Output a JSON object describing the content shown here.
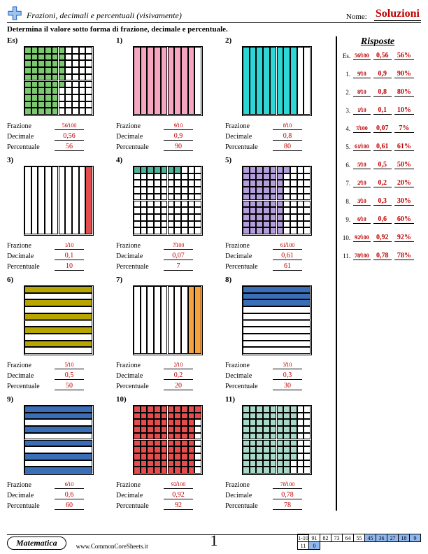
{
  "header": {
    "title": "Frazioni, decimali e percentuali (visivamente)",
    "name_label": "Nome:",
    "solutions": "Soluzioni",
    "answers_title": "Risposte"
  },
  "instructions": "Determina il valore sotto forma di frazione, decimale e percentuale.",
  "labels": {
    "fraction": "Frazione",
    "decimal": "Decimale",
    "percent": "Percentuale",
    "es": "Es)",
    "es_short": "Es."
  },
  "colors": {
    "green": "#7bc96f",
    "pink": "#f7a6c1",
    "cyan": "#2fd6d6",
    "red": "#e44d4d",
    "teal": "#4fb39a",
    "purple": "#b39ddb",
    "olive": "#b8a600",
    "orange": "#f7a13d",
    "blue": "#3a6fb7",
    "seafoam": "#a8d8c8",
    "answer_red": "#c00000",
    "score_blue": "#8fb8f0",
    "score_white": "#ffffff",
    "border": "#000000"
  },
  "problems": [
    {
      "id": "Es",
      "type": "hundred",
      "filled": 56,
      "color": "green",
      "orient": "v",
      "num": 56,
      "den": 100,
      "dec": "0,56",
      "pct": "56"
    },
    {
      "id": "1",
      "type": "ten",
      "filled": 9,
      "color": "pink",
      "orient": "v",
      "num": 9,
      "den": 10,
      "dec": "0,9",
      "pct": "90"
    },
    {
      "id": "2",
      "type": "ten",
      "filled": 8,
      "color": "cyan",
      "orient": "v",
      "num": 8,
      "den": 10,
      "dec": "0,8",
      "pct": "80"
    },
    {
      "id": "3",
      "type": "ten",
      "filled": 1,
      "color": "red",
      "orient": "v",
      "side": "right",
      "num": 1,
      "den": 10,
      "dec": "0,1",
      "pct": "10"
    },
    {
      "id": "4",
      "type": "hundred",
      "filled": 7,
      "color": "teal",
      "orient": "h",
      "num": 7,
      "den": 100,
      "dec": "0,07",
      "pct": "7"
    },
    {
      "id": "5",
      "type": "hundred",
      "filled": 61,
      "color": "purple",
      "orient": "v",
      "num": 61,
      "den": 100,
      "dec": "0,61",
      "pct": "61"
    },
    {
      "id": "6",
      "type": "ten",
      "filled": 5,
      "color": "olive",
      "orient": "h",
      "alt": true,
      "num": 5,
      "den": 10,
      "dec": "0,5",
      "pct": "50"
    },
    {
      "id": "7",
      "type": "ten",
      "filled": 2,
      "color": "orange",
      "orient": "v",
      "side": "right",
      "num": 2,
      "den": 10,
      "dec": "0,2",
      "pct": "20"
    },
    {
      "id": "8",
      "type": "ten",
      "filled": 3,
      "color": "blue",
      "orient": "h",
      "num": 3,
      "den": 10,
      "dec": "0,3",
      "pct": "30"
    },
    {
      "id": "9",
      "type": "ten",
      "filled": 6,
      "color": "blue",
      "orient": "h",
      "alt": true,
      "num": 6,
      "den": 10,
      "dec": "0,6",
      "pct": "60"
    },
    {
      "id": "10",
      "type": "hundred",
      "filled": 92,
      "color": "red",
      "orient": "v",
      "num": 92,
      "den": 100,
      "dec": "0,92",
      "pct": "92"
    },
    {
      "id": "11",
      "type": "hundred",
      "filled": 78,
      "color": "seafoam",
      "orient": "v",
      "alt": true,
      "num": 78,
      "den": 100,
      "dec": "0,78",
      "pct": "78"
    }
  ],
  "footer": {
    "subject": "Matematica",
    "url": "www.CommonCoreSheets.it",
    "page": "1",
    "score_top_label": "1-10",
    "score_bot_label": "11",
    "score_top": [
      "91",
      "82",
      "73",
      "64",
      "55",
      "45",
      "36",
      "27",
      "18",
      "9"
    ],
    "score_bot": [
      "0"
    ],
    "blue_threshold": 5
  }
}
